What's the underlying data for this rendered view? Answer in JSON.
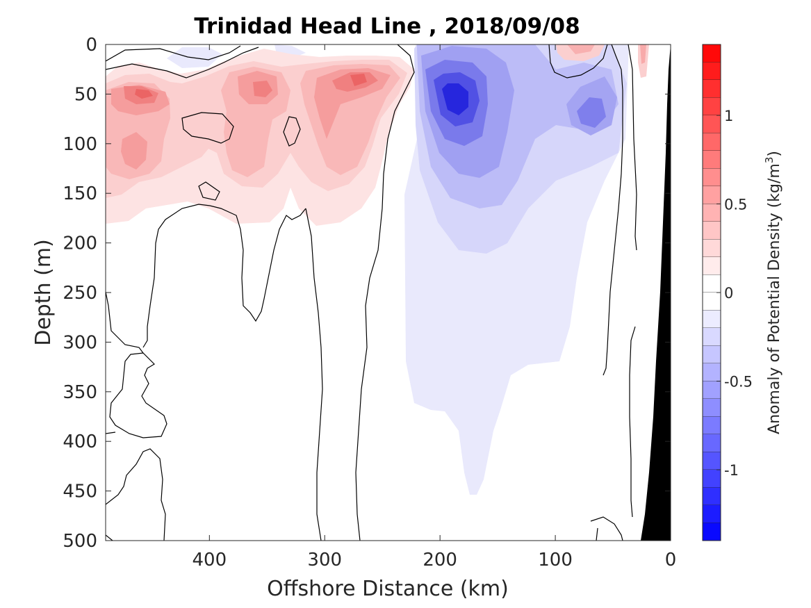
{
  "chart_data": {
    "type": "heatmap",
    "title": "Trinidad Head Line , 2018/09/08",
    "xlabel": "Offshore Distance (km)",
    "ylabel": "Depth (m)",
    "xlim": [
      490,
      0
    ],
    "ylim": [
      0,
      500
    ],
    "x_reversed": true,
    "y_reversed": true,
    "xticks": [
      400,
      300,
      200,
      100,
      0
    ],
    "yticks": [
      0,
      50,
      100,
      150,
      200,
      250,
      300,
      350,
      400,
      450,
      500
    ],
    "colorbar": {
      "label_prefix": "Anomaly of Potential Density (kg/m",
      "label_sup": "3",
      "label_suffix": ")",
      "range": [
        -1.4,
        1.4
      ],
      "step": 0.1,
      "ticks": [
        1,
        0.5,
        0,
        -0.5,
        -1
      ],
      "colormap": "blue-white-red",
      "positive_color": "#ff0000",
      "negative_color": "#0000ff"
    },
    "contour_level": 0,
    "bathymetry_color": "#000000",
    "features": [
      {
        "name": "surface positive anomaly",
        "x": 455,
        "y": 50,
        "value": 0.9
      },
      {
        "name": "surface positive anomaly",
        "x": 360,
        "y": 45,
        "value": 0.6
      },
      {
        "name": "surface positive anomaly",
        "x": 280,
        "y": 35,
        "value": 0.7
      },
      {
        "name": "subsurface positive anomaly",
        "x": 450,
        "y": 120,
        "value": 0.4
      },
      {
        "name": "subsurface positive anomaly",
        "x": 360,
        "y": 120,
        "value": 0.4
      },
      {
        "name": "subsurface positive anomaly",
        "x": 285,
        "y": 80,
        "value": 0.55
      },
      {
        "name": "nearshore positive anomaly",
        "x": 85,
        "y": 10,
        "value": 0.3
      },
      {
        "name": "nearshore positive anomaly",
        "x": 25,
        "y": 20,
        "value": 0.3
      },
      {
        "name": "core negative anomaly",
        "x": 190,
        "y": 55,
        "value": -1.2
      },
      {
        "name": "negative anomaly",
        "x": 150,
        "y": 15,
        "value": -0.4
      },
      {
        "name": "negative anomaly",
        "x": 70,
        "y": 70,
        "value": -0.6
      },
      {
        "name": "broad negative anomaly",
        "x": 180,
        "y": 300,
        "value": -0.1
      },
      {
        "name": "deep negative tongue",
        "x": 180,
        "y": 430,
        "value": -0.08
      }
    ]
  }
}
